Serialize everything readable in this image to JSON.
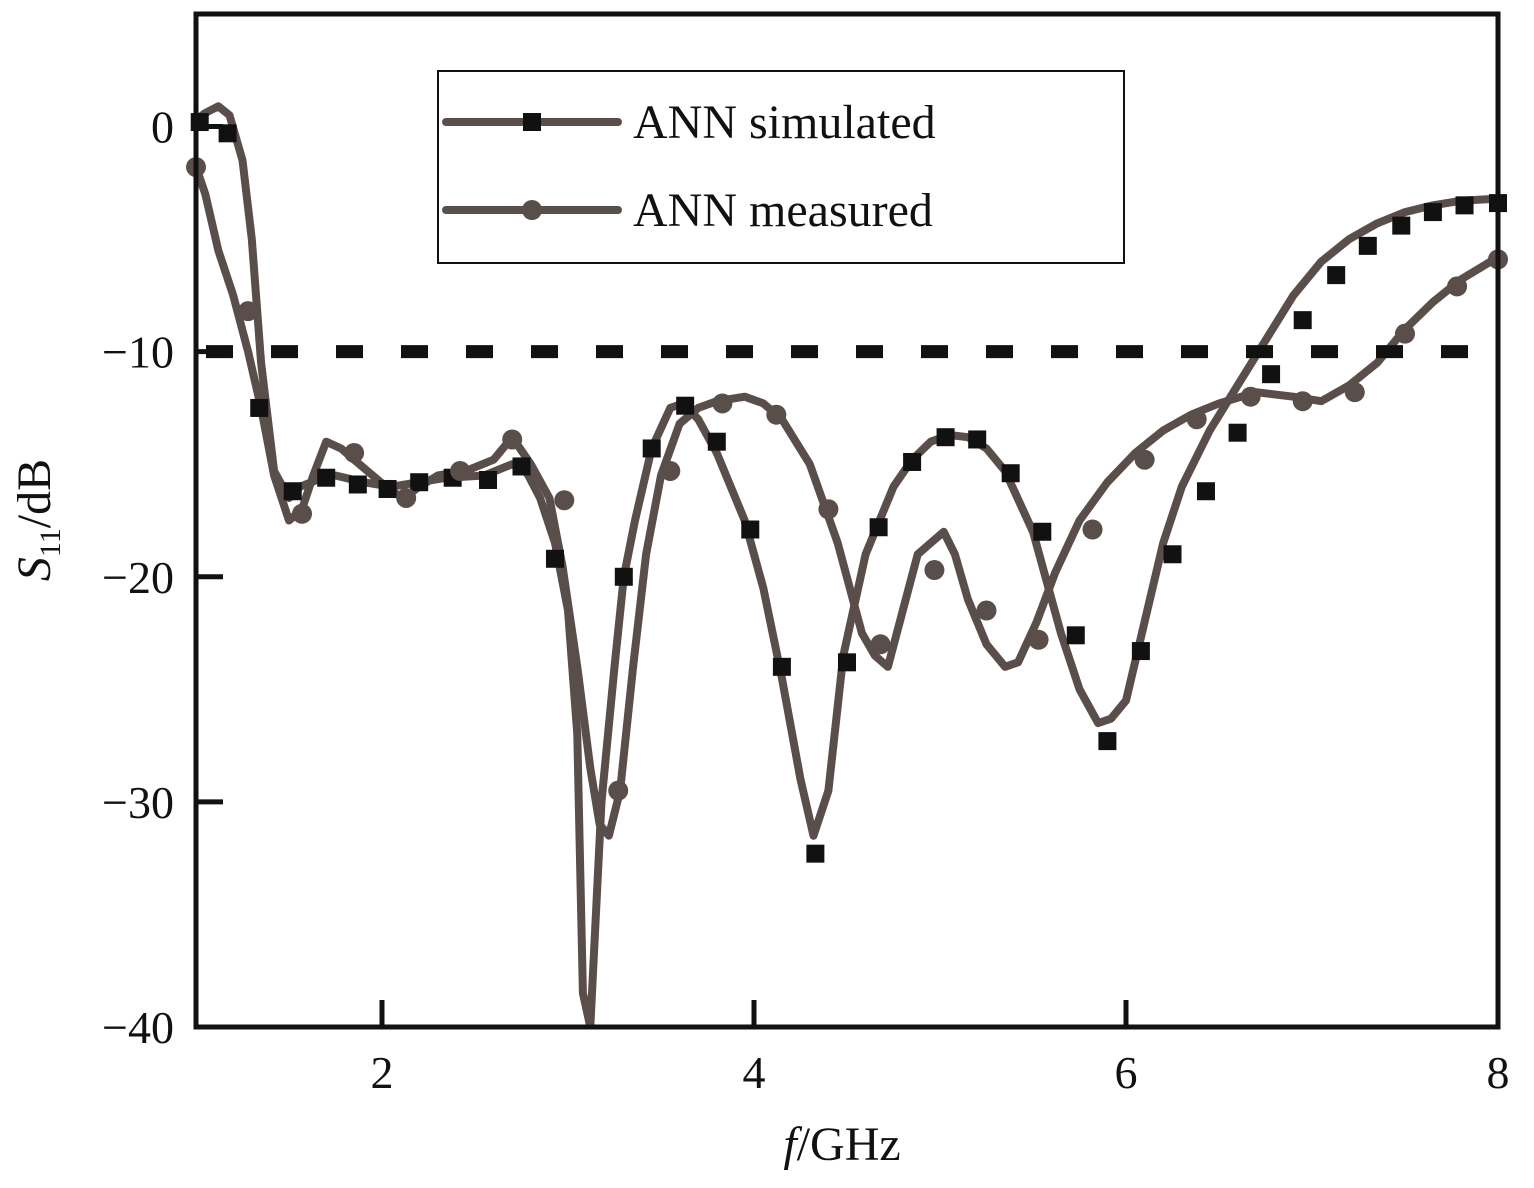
{
  "chart_data": {
    "type": "line",
    "xlabel_italic": "f",
    "xlabel_rest": "/GHz",
    "ylabel_italic": "S",
    "ylabel_sub": "11",
    "ylabel_rest": "/dB",
    "xlim": [
      1,
      8
    ],
    "ylim": [
      -40,
      5
    ],
    "x_ticks": [
      2,
      4,
      6,
      8
    ],
    "x_tick_labels": [
      "2",
      "4",
      "6",
      "8"
    ],
    "y_ticks": [
      0,
      -10,
      -20,
      -30,
      -40
    ],
    "y_tick_labels": [
      "0",
      "−10",
      "−20",
      "−30",
      "−40"
    ],
    "grid": false,
    "legend_position": "top-center",
    "reference_line": {
      "y": -10,
      "style": "dashed"
    },
    "colors": {
      "curve": "#5a4e4a",
      "marker": "#111111",
      "axes": "#111111"
    },
    "series": [
      {
        "name": "ANN simulated",
        "marker": "square",
        "x": [
          1.0,
          1.05,
          1.12,
          1.18,
          1.25,
          1.3,
          1.35,
          1.42,
          1.5,
          1.56,
          1.65,
          1.75,
          1.9,
          2.05,
          2.2,
          2.35,
          2.55,
          2.7,
          2.78,
          2.85,
          2.93,
          3.0,
          3.05,
          3.08,
          3.12,
          3.18,
          3.25,
          3.3,
          3.36,
          3.45,
          3.55,
          3.62,
          3.7,
          3.8,
          3.95,
          4.05,
          4.15,
          4.25,
          4.32,
          4.4,
          4.48,
          4.6,
          4.75,
          4.85,
          4.95,
          5.05,
          5.15,
          5.25,
          5.35,
          5.5,
          5.65,
          5.75,
          5.85,
          5.92,
          6.0,
          6.1,
          6.2,
          6.3,
          6.45,
          6.6,
          6.75,
          6.9,
          7.05,
          7.2,
          7.35,
          7.5,
          7.65,
          7.8,
          8.0
        ],
        "y": [
          0.3,
          0.6,
          0.9,
          0.5,
          -1.5,
          -5.0,
          -10.5,
          -15.3,
          -16.5,
          -16.0,
          -15.7,
          -15.5,
          -15.8,
          -16.0,
          -15.8,
          -15.6,
          -15.5,
          -15.0,
          -15.4,
          -16.5,
          -18.5,
          -21.5,
          -27.0,
          -38.5,
          -40.0,
          -30.0,
          -24.0,
          -20.0,
          -17.5,
          -14.3,
          -12.5,
          -12.3,
          -13.0,
          -14.5,
          -17.5,
          -20.5,
          -24.5,
          -29.0,
          -31.5,
          -29.5,
          -23.5,
          -19.0,
          -16.0,
          -14.8,
          -14.0,
          -13.7,
          -13.8,
          -14.3,
          -15.3,
          -18.0,
          -22.5,
          -25.0,
          -26.5,
          -26.3,
          -25.5,
          -22.0,
          -18.5,
          -16.0,
          -13.5,
          -11.5,
          -9.5,
          -7.5,
          -6.0,
          -5.0,
          -4.3,
          -3.8,
          -3.5,
          -3.3,
          -3.2
        ],
        "marker_x": [
          1.02,
          1.17,
          1.34,
          1.52,
          1.7,
          1.87,
          2.03,
          2.2,
          2.38,
          2.57,
          2.75,
          2.93,
          3.3,
          3.45,
          3.63,
          3.8,
          3.98,
          4.15,
          4.33,
          4.5,
          4.67,
          4.85,
          5.03,
          5.2,
          5.38,
          5.55,
          5.73,
          5.9,
          6.08,
          6.25,
          6.43,
          6.6,
          6.78,
          6.95,
          7.13,
          7.3,
          7.48,
          7.65,
          7.82,
          8.0
        ],
        "marker_y": [
          0.2,
          -0.3,
          -12.5,
          -16.2,
          -15.6,
          -15.9,
          -16.1,
          -15.8,
          -15.6,
          -15.7,
          -15.1,
          -19.2,
          -20.0,
          -14.3,
          -12.4,
          -14.0,
          -17.9,
          -24.0,
          -32.3,
          -23.8,
          -17.8,
          -14.9,
          -13.8,
          -13.9,
          -15.4,
          -18.0,
          -22.6,
          -27.3,
          -23.3,
          -19.0,
          -16.2,
          -13.6,
          -11.0,
          -8.6,
          -6.6,
          -5.3,
          -4.4,
          -3.8,
          -3.5,
          -3.4
        ]
      },
      {
        "name": "ANN measured",
        "marker": "circle",
        "x": [
          1.0,
          1.05,
          1.12,
          1.2,
          1.28,
          1.35,
          1.42,
          1.5,
          1.57,
          1.63,
          1.7,
          1.78,
          1.85,
          1.95,
          2.05,
          2.12,
          2.2,
          2.3,
          2.45,
          2.6,
          2.7,
          2.8,
          2.9,
          2.97,
          3.05,
          3.12,
          3.17,
          3.22,
          3.28,
          3.35,
          3.42,
          3.5,
          3.6,
          3.7,
          3.8,
          3.95,
          4.05,
          4.15,
          4.3,
          4.45,
          4.58,
          4.65,
          4.72,
          4.8,
          4.88,
          4.95,
          5.02,
          5.08,
          5.15,
          5.25,
          5.35,
          5.42,
          5.52,
          5.62,
          5.75,
          5.9,
          6.05,
          6.2,
          6.35,
          6.5,
          6.7,
          6.9,
          7.05,
          7.2,
          7.35,
          7.5,
          7.65,
          7.8,
          8.0
        ],
        "y": [
          -1.8,
          -3.0,
          -5.5,
          -7.5,
          -10.0,
          -12.5,
          -15.5,
          -17.5,
          -17.0,
          -15.5,
          -14.0,
          -14.3,
          -14.8,
          -15.5,
          -16.2,
          -16.5,
          -16.0,
          -15.5,
          -15.3,
          -14.8,
          -13.8,
          -15.0,
          -16.5,
          -19.5,
          -24.0,
          -28.5,
          -31.0,
          -31.5,
          -29.5,
          -24.0,
          -19.0,
          -15.5,
          -13.2,
          -12.5,
          -12.2,
          -12.0,
          -12.3,
          -13.0,
          -15.0,
          -18.5,
          -22.5,
          -23.5,
          -24.0,
          -21.5,
          -19.0,
          -18.5,
          -18.0,
          -19.0,
          -21.0,
          -23.0,
          -24.0,
          -23.8,
          -22.0,
          -19.8,
          -17.5,
          -15.8,
          -14.5,
          -13.5,
          -12.8,
          -12.3,
          -11.8,
          -12.0,
          -12.2,
          -11.5,
          -10.5,
          -9.0,
          -7.8,
          -6.8,
          -5.8
        ],
        "marker_x": [
          1.0,
          1.28,
          1.57,
          1.85,
          2.13,
          2.42,
          2.7,
          2.98,
          3.27,
          3.55,
          3.83,
          4.12,
          4.4,
          4.68,
          4.97,
          5.25,
          5.53,
          5.82,
          6.1,
          6.38,
          6.67,
          6.95,
          7.23,
          7.5,
          7.78,
          8.0
        ],
        "marker_y": [
          -1.8,
          -8.2,
          -17.2,
          -14.5,
          -16.5,
          -15.3,
          -13.9,
          -16.6,
          -29.5,
          -15.3,
          -12.3,
          -12.8,
          -17.0,
          -23.0,
          -19.7,
          -21.5,
          -22.8,
          -17.9,
          -14.8,
          -13.0,
          -12.0,
          -12.2,
          -11.8,
          -9.2,
          -7.1,
          -5.9
        ]
      }
    ]
  }
}
